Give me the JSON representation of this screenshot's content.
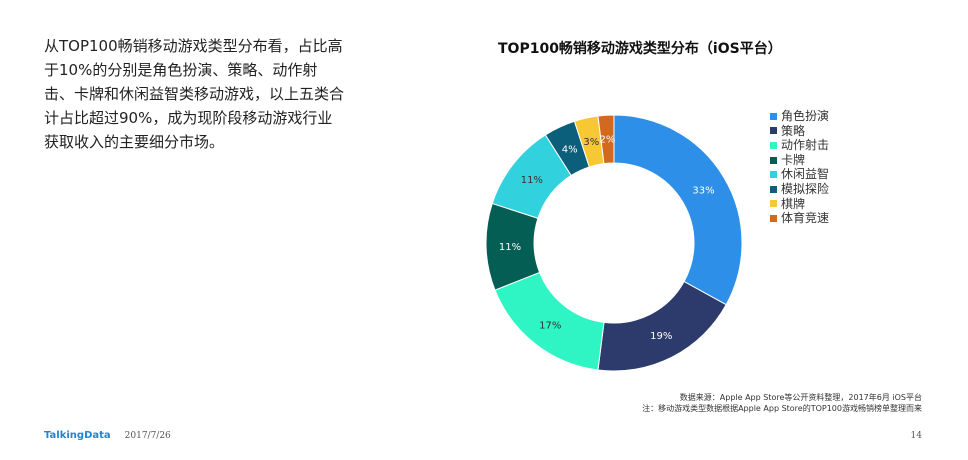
{
  "intro_text": "从TOP100畅销移动游戏类型分布看，占比高于10%的分别是角色扮演、策略、动作射击、卡牌和休闲益智类移动游戏，以上五类合计占比超过90%，成为现阶段移动游戏行业获取收入的主要细分市场。",
  "chart_data": {
    "type": "pie",
    "title": "TOP100畅销移动游戏类型分布（iOS平台）",
    "categories": [
      "角色扮演",
      "策略",
      "动作射击",
      "卡牌",
      "休闲益智",
      "模拟探险",
      "棋牌",
      "体育竞速"
    ],
    "values": [
      33,
      19,
      17,
      11,
      11,
      4,
      3,
      2
    ],
    "labels": [
      "33%",
      "19%",
      "17%",
      "11%",
      "11%",
      "4%",
      "3%",
      "2%"
    ],
    "colors": [
      "#2e8fe8",
      "#2d3b6c",
      "#2ef5c3",
      "#045e54",
      "#32d1de",
      "#0b5f7a",
      "#f7c833",
      "#d2691e"
    ],
    "label_colors": [
      "#ffffff",
      "#ffffff",
      "#333333",
      "#ffffff",
      "#333333",
      "#ffffff",
      "#333333",
      "#ffffff"
    ],
    "donut": true,
    "legend_position": "right"
  },
  "source": {
    "line1": "数据来源：Apple App Store等公开资料整理，2017年6月 iOS平台",
    "line2": "注：移动游戏类型数据根据Apple App Store的TOP100游戏畅销榜单整理而来"
  },
  "footer": {
    "brand": "TalkingData",
    "date": "2017/7/26",
    "page": "14"
  }
}
